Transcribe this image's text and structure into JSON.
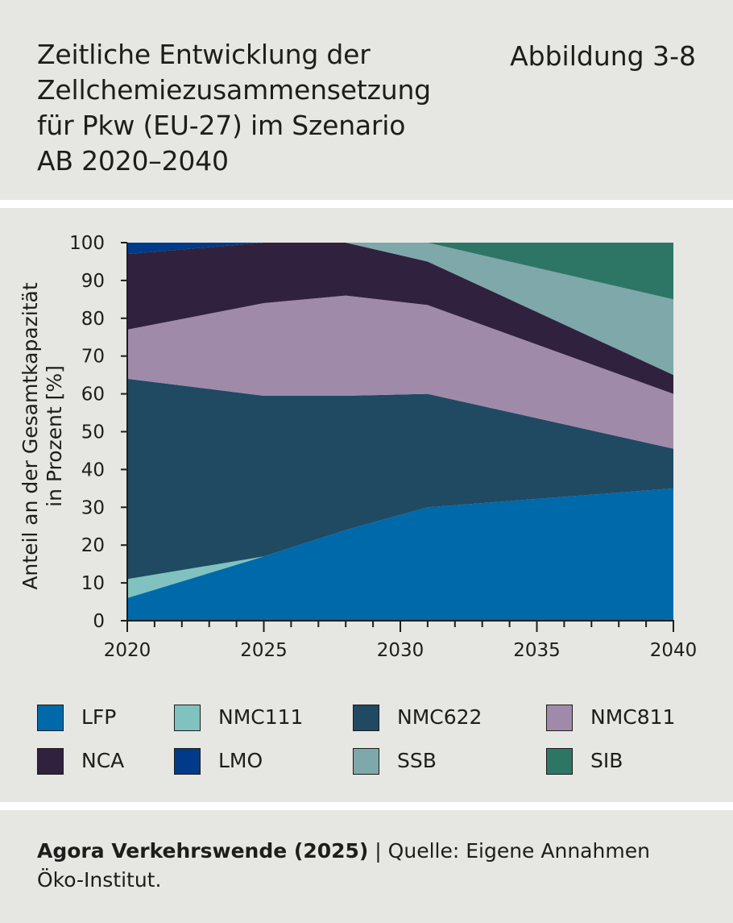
{
  "header": {
    "title_lines": [
      "Zeitliche Entwicklung der",
      "Zellchemiezusammensetzung",
      "für Pkw (EU-27) im Szenario",
      "AB 2020–2040"
    ],
    "figure_label": "Abbildung 3-8"
  },
  "chart_data": {
    "type": "area",
    "stacked": true,
    "ylabel_lines": [
      "Anteil an der Gesamtkapazität",
      "in Prozent [%]"
    ],
    "xlabel": "",
    "xlim": [
      2020,
      2040
    ],
    "ylim": [
      0,
      100
    ],
    "x_ticks": [
      2020,
      2025,
      2030,
      2035,
      2040
    ],
    "y_ticks": [
      0,
      10,
      20,
      30,
      40,
      50,
      60,
      70,
      80,
      90,
      100
    ],
    "x": [
      2020,
      2025,
      2028,
      2031,
      2040
    ],
    "series": [
      {
        "name": "LFP",
        "color": "#0069aa",
        "values": [
          6,
          17,
          24,
          30,
          35
        ]
      },
      {
        "name": "NMC111",
        "color": "#7fc2bf",
        "values": [
          5,
          0,
          0,
          0,
          0
        ]
      },
      {
        "name": "NMC622",
        "color": "#1f4a62",
        "values": [
          53,
          42.5,
          35.5,
          30,
          10.5
        ]
      },
      {
        "name": "NMC811",
        "color": "#a08aa9",
        "values": [
          13,
          24.5,
          26.5,
          23.5,
          14.5
        ]
      },
      {
        "name": "NCA",
        "color": "#30223f",
        "values": [
          20,
          16,
          14,
          11.5,
          5
        ]
      },
      {
        "name": "LMO",
        "color": "#003a89",
        "values": [
          3,
          0,
          0,
          0,
          0
        ]
      },
      {
        "name": "SSB",
        "color": "#7fa8aa",
        "values": [
          0,
          0,
          0,
          5,
          20
        ]
      },
      {
        "name": "SIB",
        "color": "#2d7665",
        "values": [
          0,
          0,
          0,
          0,
          15
        ]
      }
    ],
    "legend_position": "bottom"
  },
  "footer": {
    "line1_bold": "Agora Verkehrswende (2025)",
    "line1_sep": " | ",
    "line1_rest": "Quelle: Eigene Annahmen",
    "line2": "Öko-Institut."
  }
}
